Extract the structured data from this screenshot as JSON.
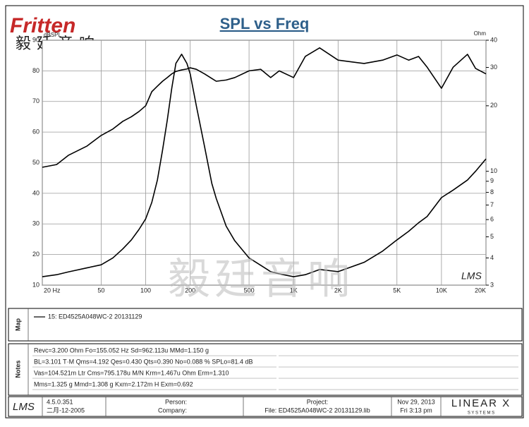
{
  "header": {
    "logo": "Fritten",
    "logo_cn": "毅廷音响"
  },
  "watermark": "毅廷音响",
  "chart_data": {
    "type": "line",
    "title": "SPL vs Freq",
    "ylabel": "dBSPL",
    "y2label": "Ohm",
    "logo_mark": "LMS",
    "x": [
      20,
      25,
      30,
      40,
      50,
      60,
      70,
      80,
      90,
      100,
      110,
      120,
      130,
      140,
      150,
      160,
      175,
      190,
      200,
      220,
      250,
      280,
      300,
      350,
      400,
      500,
      600,
      700,
      800,
      1000,
      1200,
      1500,
      2000,
      3000,
      4000,
      5000,
      6000,
      7000,
      8000,
      10000,
      12000,
      15000,
      17000,
      20000
    ],
    "xscale": "log",
    "xlim": [
      20,
      20000
    ],
    "xticks": [
      {
        "value": 20,
        "label": "20 Hz"
      },
      50,
      100,
      200,
      500,
      {
        "value": 1000,
        "label": "1K"
      },
      {
        "value": 2000,
        "label": "2K"
      },
      {
        "value": 5000,
        "label": "5K"
      },
      {
        "value": 10000,
        "label": "10K"
      },
      {
        "value": 20000,
        "label": "20K"
      }
    ],
    "ylim": [
      10,
      90
    ],
    "yticks": [
      10,
      20,
      30,
      40,
      50,
      60,
      70,
      80,
      90
    ],
    "y2scale": "log",
    "y2lim": [
      3,
      40
    ],
    "y2ticks": [
      3,
      4,
      5,
      6,
      7,
      8,
      9,
      10,
      20,
      30,
      40
    ],
    "grid": true,
    "series": [
      {
        "color": "#000000",
        "values": [
          48.5,
          49.4,
          52.4,
          55.4,
          58.9,
          61,
          63.5,
          65,
          66.7,
          68.6,
          73.2,
          75,
          76.6,
          77.8,
          79,
          79.8,
          80.3,
          80.6,
          81,
          80.5,
          79,
          77.5,
          76.6,
          77,
          77.8,
          80,
          80.5,
          77.8,
          80,
          77.8,
          84.7,
          87.5,
          83.5,
          82.4,
          83.5,
          85.2,
          83.5,
          84.7,
          81.2,
          74.3,
          81.2,
          85.4,
          80.8,
          79
        ]
      },
      {
        "color": "#000000",
        "axis": "y2",
        "values": [
          3.28,
          3.35,
          3.45,
          3.6,
          3.72,
          4,
          4.4,
          4.84,
          5.4,
          6.05,
          7.2,
          9.12,
          12.5,
          17.2,
          24,
          31.3,
          34.5,
          31.3,
          28,
          20,
          13,
          8.8,
          7.5,
          5.6,
          4.8,
          4,
          3.7,
          3.46,
          3.38,
          3.28,
          3.35,
          3.54,
          3.46,
          3.82,
          4.3,
          4.84,
          5.3,
          5.8,
          6.2,
          7.57,
          8.2,
          9.12,
          10,
          11.4
        ]
      }
    ]
  },
  "map": {
    "label": "Map",
    "legend": "15: ED4525A048WC-2   20131129"
  },
  "notes": {
    "label": "Notes",
    "lines": [
      "Revc=3.200 Ohm  Fo=155.052 Hz  Sd=962.113u MMd=1.150 g",
      "BL=3.101 T·M  Qms=4.192  Qes=0.430  Qts=0.390  No=0.088 %  SPLo=81.4 dB",
      "Vas=104.521m Ltr  Cms=795.178u M/N  Krm=1.467u Ohm  Erm=1.310",
      "Mms=1.325 g  Mmd=1.308 g  Kxm=2.172m H  Exm=0.692"
    ]
  },
  "footer": {
    "logo": "LMS",
    "version": "4.5.0.351",
    "build_date": "二月-12-2005",
    "person": "Person:",
    "company": "Company:",
    "project": "Project:",
    "file": "File: ED4525A048WC-2  20131129.lib",
    "date": "Nov 29, 2013",
    "time": "Fri  3:13 pm",
    "brand": "LINEAR X",
    "brand_sub": "S Y S T E M S"
  }
}
